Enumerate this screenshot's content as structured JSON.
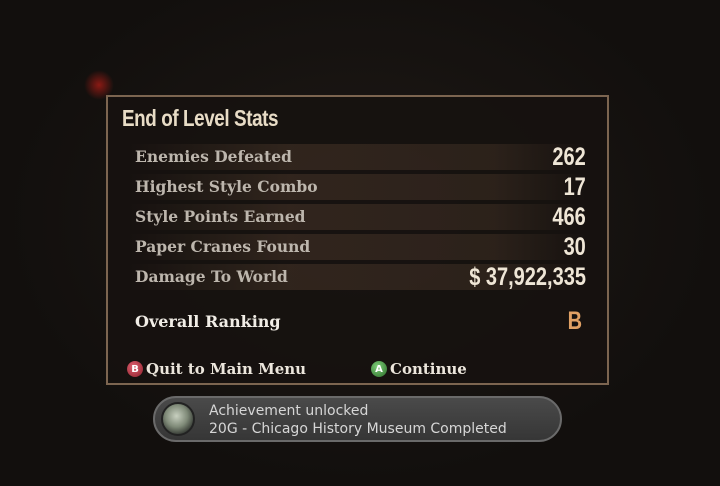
{
  "panel": {
    "title": "End of Level Stats",
    "stats": [
      {
        "label": "Enemies Defeated",
        "value": "262"
      },
      {
        "label": "Highest Style Combo",
        "value": "17"
      },
      {
        "label": "Style Points Earned",
        "value": "466"
      },
      {
        "label": "Paper Cranes Found",
        "value": "30"
      },
      {
        "label": "Damage To World",
        "value": "$ 37,922,335"
      }
    ],
    "ranking_label": "Overall Ranking",
    "ranking_value": "B",
    "quit_button": {
      "glyph": "B",
      "label": "Quit to Main Menu",
      "color": "#b0303a"
    },
    "continue_button": {
      "glyph": "A",
      "label": "Continue",
      "color": "#3c8a3a"
    }
  },
  "achievement": {
    "icon": "xbox-achievement-icon",
    "line1": "Achievement unlocked",
    "line2": "20G - Chicago History Museum Completed"
  }
}
